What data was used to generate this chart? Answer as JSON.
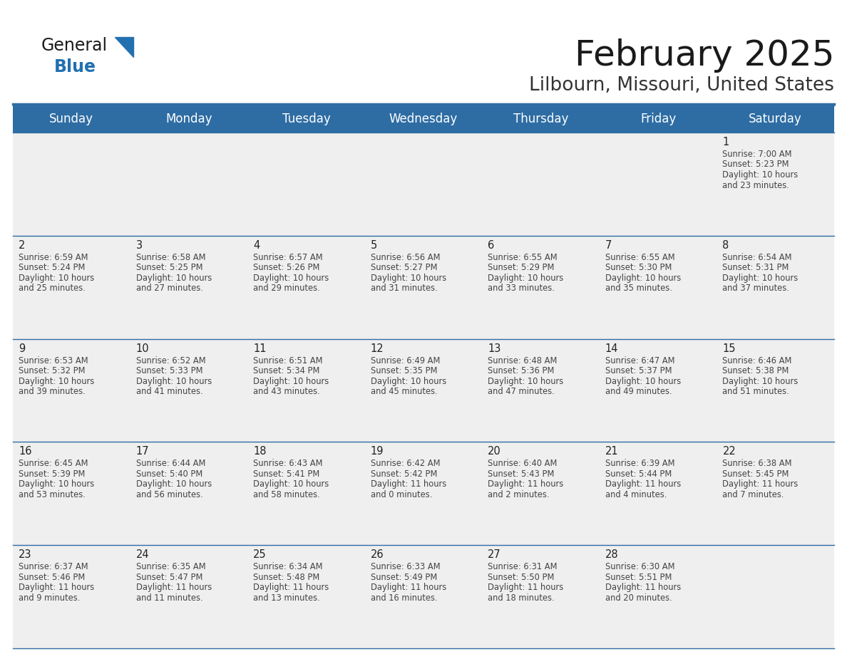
{
  "title": "February 2025",
  "subtitle": "Lilbourn, Missouri, United States",
  "header_bg": "#2E6DA4",
  "header_text": "#FFFFFF",
  "cell_bg_light": "#EFEFEF",
  "line_color": "#2E6DA4",
  "day_headers": [
    "Sunday",
    "Monday",
    "Tuesday",
    "Wednesday",
    "Thursday",
    "Friday",
    "Saturday"
  ],
  "days": [
    {
      "day": 1,
      "col": 6,
      "row": 0,
      "sunrise": "7:00 AM",
      "sunset": "5:23 PM",
      "daylight_hours": 10,
      "daylight_minutes": 23
    },
    {
      "day": 2,
      "col": 0,
      "row": 1,
      "sunrise": "6:59 AM",
      "sunset": "5:24 PM",
      "daylight_hours": 10,
      "daylight_minutes": 25
    },
    {
      "day": 3,
      "col": 1,
      "row": 1,
      "sunrise": "6:58 AM",
      "sunset": "5:25 PM",
      "daylight_hours": 10,
      "daylight_minutes": 27
    },
    {
      "day": 4,
      "col": 2,
      "row": 1,
      "sunrise": "6:57 AM",
      "sunset": "5:26 PM",
      "daylight_hours": 10,
      "daylight_minutes": 29
    },
    {
      "day": 5,
      "col": 3,
      "row": 1,
      "sunrise": "6:56 AM",
      "sunset": "5:27 PM",
      "daylight_hours": 10,
      "daylight_minutes": 31
    },
    {
      "day": 6,
      "col": 4,
      "row": 1,
      "sunrise": "6:55 AM",
      "sunset": "5:29 PM",
      "daylight_hours": 10,
      "daylight_minutes": 33
    },
    {
      "day": 7,
      "col": 5,
      "row": 1,
      "sunrise": "6:55 AM",
      "sunset": "5:30 PM",
      "daylight_hours": 10,
      "daylight_minutes": 35
    },
    {
      "day": 8,
      "col": 6,
      "row": 1,
      "sunrise": "6:54 AM",
      "sunset": "5:31 PM",
      "daylight_hours": 10,
      "daylight_minutes": 37
    },
    {
      "day": 9,
      "col": 0,
      "row": 2,
      "sunrise": "6:53 AM",
      "sunset": "5:32 PM",
      "daylight_hours": 10,
      "daylight_minutes": 39
    },
    {
      "day": 10,
      "col": 1,
      "row": 2,
      "sunrise": "6:52 AM",
      "sunset": "5:33 PM",
      "daylight_hours": 10,
      "daylight_minutes": 41
    },
    {
      "day": 11,
      "col": 2,
      "row": 2,
      "sunrise": "6:51 AM",
      "sunset": "5:34 PM",
      "daylight_hours": 10,
      "daylight_minutes": 43
    },
    {
      "day": 12,
      "col": 3,
      "row": 2,
      "sunrise": "6:49 AM",
      "sunset": "5:35 PM",
      "daylight_hours": 10,
      "daylight_minutes": 45
    },
    {
      "day": 13,
      "col": 4,
      "row": 2,
      "sunrise": "6:48 AM",
      "sunset": "5:36 PM",
      "daylight_hours": 10,
      "daylight_minutes": 47
    },
    {
      "day": 14,
      "col": 5,
      "row": 2,
      "sunrise": "6:47 AM",
      "sunset": "5:37 PM",
      "daylight_hours": 10,
      "daylight_minutes": 49
    },
    {
      "day": 15,
      "col": 6,
      "row": 2,
      "sunrise": "6:46 AM",
      "sunset": "5:38 PM",
      "daylight_hours": 10,
      "daylight_minutes": 51
    },
    {
      "day": 16,
      "col": 0,
      "row": 3,
      "sunrise": "6:45 AM",
      "sunset": "5:39 PM",
      "daylight_hours": 10,
      "daylight_minutes": 53
    },
    {
      "day": 17,
      "col": 1,
      "row": 3,
      "sunrise": "6:44 AM",
      "sunset": "5:40 PM",
      "daylight_hours": 10,
      "daylight_minutes": 56
    },
    {
      "day": 18,
      "col": 2,
      "row": 3,
      "sunrise": "6:43 AM",
      "sunset": "5:41 PM",
      "daylight_hours": 10,
      "daylight_minutes": 58
    },
    {
      "day": 19,
      "col": 3,
      "row": 3,
      "sunrise": "6:42 AM",
      "sunset": "5:42 PM",
      "daylight_hours": 11,
      "daylight_minutes": 0
    },
    {
      "day": 20,
      "col": 4,
      "row": 3,
      "sunrise": "6:40 AM",
      "sunset": "5:43 PM",
      "daylight_hours": 11,
      "daylight_minutes": 2
    },
    {
      "day": 21,
      "col": 5,
      "row": 3,
      "sunrise": "6:39 AM",
      "sunset": "5:44 PM",
      "daylight_hours": 11,
      "daylight_minutes": 4
    },
    {
      "day": 22,
      "col": 6,
      "row": 3,
      "sunrise": "6:38 AM",
      "sunset": "5:45 PM",
      "daylight_hours": 11,
      "daylight_minutes": 7
    },
    {
      "day": 23,
      "col": 0,
      "row": 4,
      "sunrise": "6:37 AM",
      "sunset": "5:46 PM",
      "daylight_hours": 11,
      "daylight_minutes": 9
    },
    {
      "day": 24,
      "col": 1,
      "row": 4,
      "sunrise": "6:35 AM",
      "sunset": "5:47 PM",
      "daylight_hours": 11,
      "daylight_minutes": 11
    },
    {
      "day": 25,
      "col": 2,
      "row": 4,
      "sunrise": "6:34 AM",
      "sunset": "5:48 PM",
      "daylight_hours": 11,
      "daylight_minutes": 13
    },
    {
      "day": 26,
      "col": 3,
      "row": 4,
      "sunrise": "6:33 AM",
      "sunset": "5:49 PM",
      "daylight_hours": 11,
      "daylight_minutes": 16
    },
    {
      "day": 27,
      "col": 4,
      "row": 4,
      "sunrise": "6:31 AM",
      "sunset": "5:50 PM",
      "daylight_hours": 11,
      "daylight_minutes": 18
    },
    {
      "day": 28,
      "col": 5,
      "row": 4,
      "sunrise": "6:30 AM",
      "sunset": "5:51 PM",
      "daylight_hours": 11,
      "daylight_minutes": 20
    }
  ],
  "num_rows": 5,
  "num_cols": 7,
  "logo_color_general": "#1a1a1a",
  "logo_color_blue": "#2270B0",
  "logo_triangle_color": "#2270B0",
  "title_color": "#1a1a1a",
  "subtitle_color": "#333333"
}
